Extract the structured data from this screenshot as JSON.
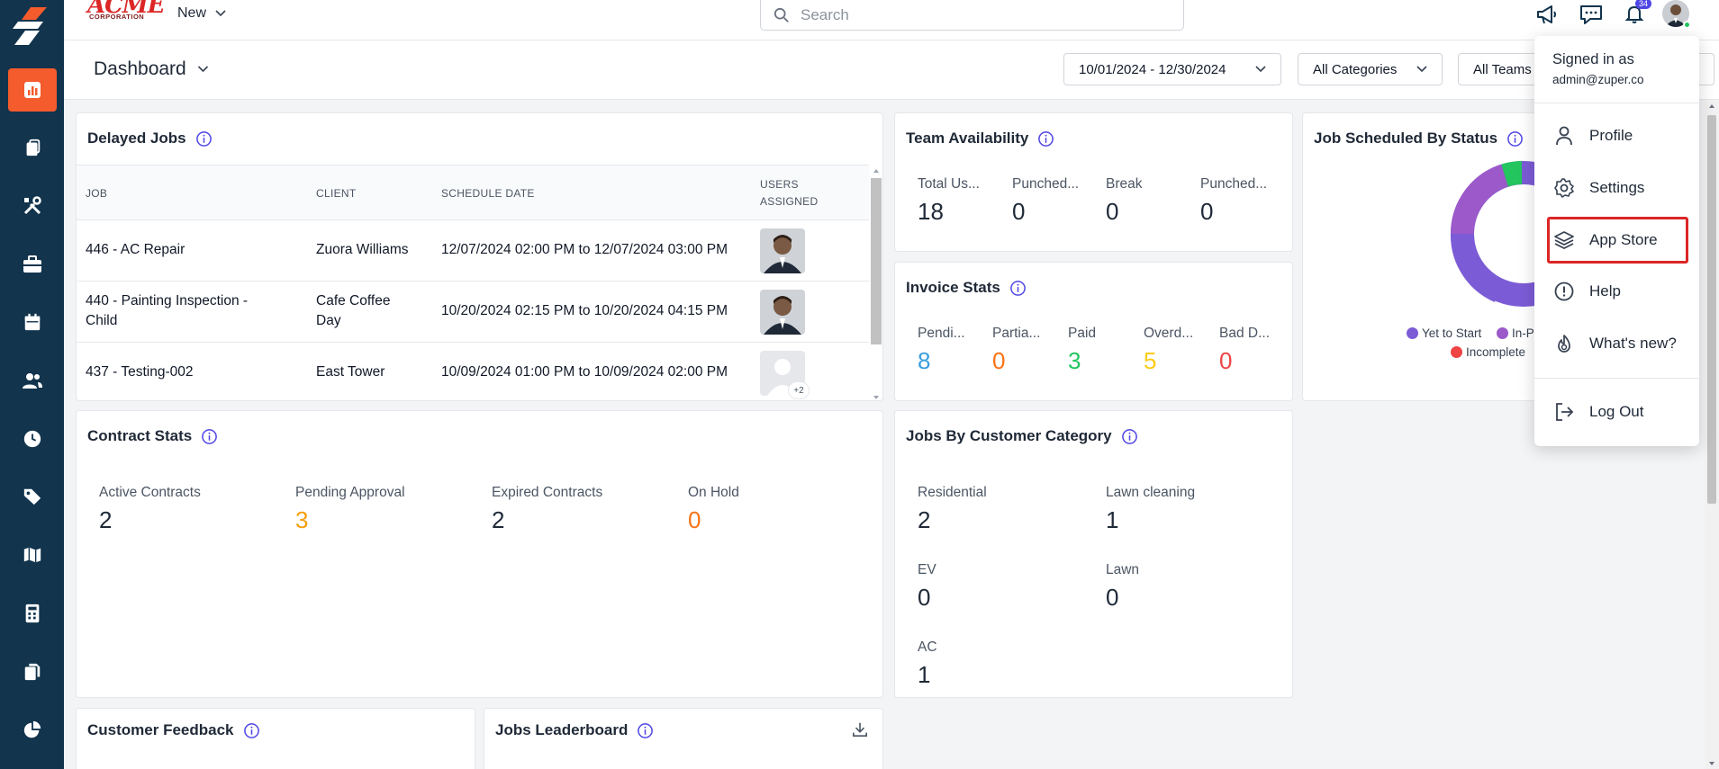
{
  "brand": {
    "name": "ACME",
    "sub": "CORPORATION"
  },
  "topbar": {
    "new_label": "New",
    "search_placeholder": "Search",
    "notification_count": "34"
  },
  "subheader": {
    "title": "Dashboard",
    "date_range": "10/01/2024 - 12/30/2024",
    "categories": "All Categories",
    "teams": "All Teams"
  },
  "delayed_jobs": {
    "title": "Delayed Jobs",
    "headers": {
      "job": "JOB",
      "client": "CLIENT",
      "schedule": "SCHEDULE DATE",
      "users_1": "USERS",
      "users_2": "ASSIGNED"
    },
    "rows": [
      {
        "job": "446 - AC Repair",
        "client": "Zuora Williams",
        "schedule": "12/07/2024 02:00 PM to 12/07/2024 03:00 PM"
      },
      {
        "job_1": "440 - Painting Inspection -",
        "job_2": "Child",
        "client_1": "Cafe Coffee",
        "client_2": "Day",
        "schedule": "10/20/2024 02:15 PM to 10/20/2024 04:15 PM"
      },
      {
        "job": "437 - Testing-002",
        "client": "East Tower",
        "schedule": "10/09/2024 01:00 PM to 10/09/2024 02:00 PM",
        "more_users": "+2"
      }
    ]
  },
  "team_availability": {
    "title": "Team Availability",
    "stats": [
      {
        "label": "Total Us...",
        "value": "18"
      },
      {
        "label": "Punched...",
        "value": "0"
      },
      {
        "label": "Break",
        "value": "0"
      },
      {
        "label": "Punched...",
        "value": "0"
      }
    ]
  },
  "invoice_stats": {
    "title": "Invoice Stats",
    "stats": [
      {
        "label": "Pendi...",
        "value": "8",
        "color": "#3b9ddd"
      },
      {
        "label": "Partia...",
        "value": "0",
        "color": "#f97316"
      },
      {
        "label": "Paid",
        "value": "3",
        "color": "#22c55e"
      },
      {
        "label": "Overd...",
        "value": "5",
        "color": "#facc15"
      },
      {
        "label": "Bad D...",
        "value": "0",
        "color": "#ef4444"
      }
    ]
  },
  "job_status": {
    "title": "Job Scheduled By Status",
    "legend": [
      {
        "label": "Yet to Start",
        "color": "#7c5cd6"
      },
      {
        "label": "In-P",
        "color": "#9b59c9"
      },
      {
        "label": "Incomplete",
        "color": "#ef4444"
      }
    ]
  },
  "contract_stats": {
    "title": "Contract Stats",
    "stats": [
      {
        "label": "Active Contracts",
        "value": "2",
        "color": "#1f2937"
      },
      {
        "label": "Pending Approval",
        "value": "3",
        "color": "#f59e0b"
      },
      {
        "label": "Expired Contracts",
        "value": "2",
        "color": "#1f2937"
      },
      {
        "label": "On Hold",
        "value": "0",
        "color": "#f97316"
      }
    ]
  },
  "customer_category": {
    "title": "Jobs By Customer Category",
    "stats": [
      {
        "label": "Residential",
        "value": "2"
      },
      {
        "label": "Lawn cleaning",
        "value": "1"
      },
      {
        "label": "EV",
        "value": "0"
      },
      {
        "label": "Lawn",
        "value": "0"
      },
      {
        "label": "AC",
        "value": "1"
      }
    ]
  },
  "customer_feedback": {
    "title": "Customer Feedback"
  },
  "jobs_leaderboard": {
    "title": "Jobs Leaderboard"
  },
  "profile_menu": {
    "signed_in_as": "Signed in as",
    "email": "admin@zuper.co",
    "items": [
      {
        "label": "Profile"
      },
      {
        "label": "Settings"
      },
      {
        "label": "App Store"
      },
      {
        "label": "Help"
      },
      {
        "label": "What's new?"
      },
      {
        "label": "Log Out"
      }
    ]
  },
  "colors": {
    "sidebar": "#12344d",
    "accent": "#f45b2d",
    "highlight_border": "#dc2626",
    "info_icon": "#4f46e5"
  }
}
